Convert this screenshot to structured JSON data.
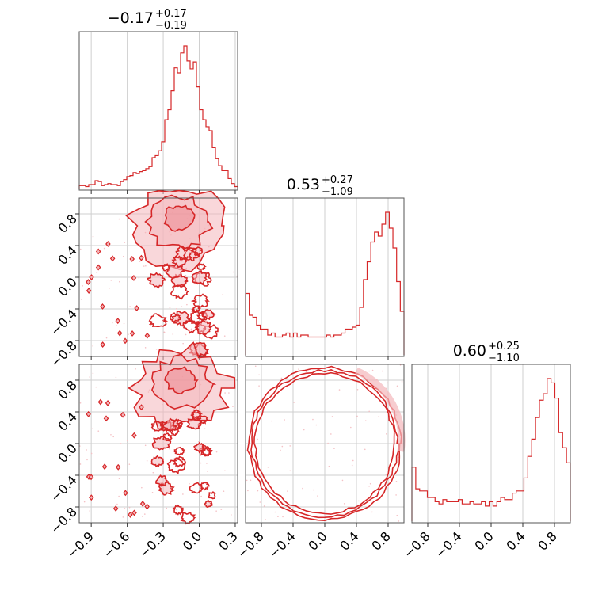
{
  "chart_data": {
    "type": "corner",
    "color": "#d62728",
    "fill_color": "#f4b6bb",
    "grid": true,
    "parameters": [
      {
        "title_main": "−0.17",
        "title_up": "+0.17",
        "title_down": "−0.19"
      },
      {
        "title_main": "0.53",
        "title_up": "+0.27",
        "title_down": "−1.09"
      },
      {
        "title_main": "0.60",
        "title_up": "+0.25",
        "title_down": "−1.10"
      }
    ],
    "ranges": [
      [
        -1.0,
        0.32
      ],
      [
        -1.0,
        1.0
      ],
      [
        -1.0,
        1.0
      ]
    ],
    "x_ticks": [
      {
        "values": [
          -0.9,
          -0.6,
          -0.3,
          0.0,
          0.3
        ],
        "labels": [
          "−0.9",
          "−0.6",
          "−0.3",
          "0.0",
          "0.3"
        ]
      },
      {
        "values": [
          -0.8,
          -0.4,
          0.0,
          0.4,
          0.8
        ],
        "labels": [
          "−0.8",
          "−0.4",
          "0.0",
          "0.4",
          "0.8"
        ]
      },
      {
        "values": [
          -0.8,
          -0.4,
          0.0,
          0.4,
          0.8
        ],
        "labels": [
          "−0.8",
          "−0.4",
          "0.0",
          "0.4",
          "0.8"
        ]
      }
    ],
    "y_ticks": {
      "values": [
        -0.8,
        -0.4,
        0.0,
        0.4,
        0.8
      ],
      "labels": [
        "−0.8",
        "−0.4",
        "0.0",
        "0.4",
        "0.8"
      ]
    },
    "histograms": [
      {
        "bin_range": [
          -1.0,
          0.32
        ],
        "counts": [
          3,
          3,
          2,
          4,
          4,
          8,
          7,
          3,
          4,
          5,
          4,
          4,
          3,
          7,
          9,
          12,
          13,
          16,
          15,
          17,
          18,
          20,
          22,
          31,
          33,
          38,
          47,
          69,
          79,
          98,
          121,
          116,
          136,
          143,
          128,
          120,
          127,
          102,
          79,
          69,
          62,
          58,
          41,
          30,
          23,
          18,
          18,
          10,
          5,
          2
        ]
      },
      {
        "bin_range": [
          -1.0,
          1.0
        ],
        "counts": [
          31,
          20,
          19,
          15,
          13,
          13,
          10,
          11,
          9,
          9,
          10,
          11,
          9,
          11,
          9,
          10,
          10,
          9,
          9,
          9,
          9,
          9,
          10,
          9,
          10,
          10,
          11,
          13,
          13,
          14,
          15,
          24,
          38,
          47,
          57,
          62,
          60,
          66,
          72,
          64,
          54,
          37,
          22
        ]
      },
      {
        "bin_range": [
          -1.0,
          1.0
        ],
        "counts": [
          25,
          15,
          14,
          14,
          11,
          11,
          9,
          8,
          10,
          9,
          9,
          9,
          10,
          8,
          8,
          9,
          8,
          8,
          9,
          7,
          9,
          7,
          9,
          11,
          10,
          10,
          13,
          14,
          14,
          20,
          30,
          38,
          48,
          56,
          59,
          66,
          64,
          57,
          41,
          34,
          27
        ]
      }
    ],
    "joint_features": [
      {
        "panel": "p2_vs_p1",
        "description": "high density blob",
        "x_center": -0.17,
        "y_center": 0.75
      },
      {
        "panel": "p3_vs_p1",
        "description": "high density blob",
        "x_center": -0.15,
        "y_center": 0.8
      },
      {
        "panel": "p3_vs_p2",
        "description": "unit circle ring",
        "radius": 1.0
      }
    ]
  }
}
